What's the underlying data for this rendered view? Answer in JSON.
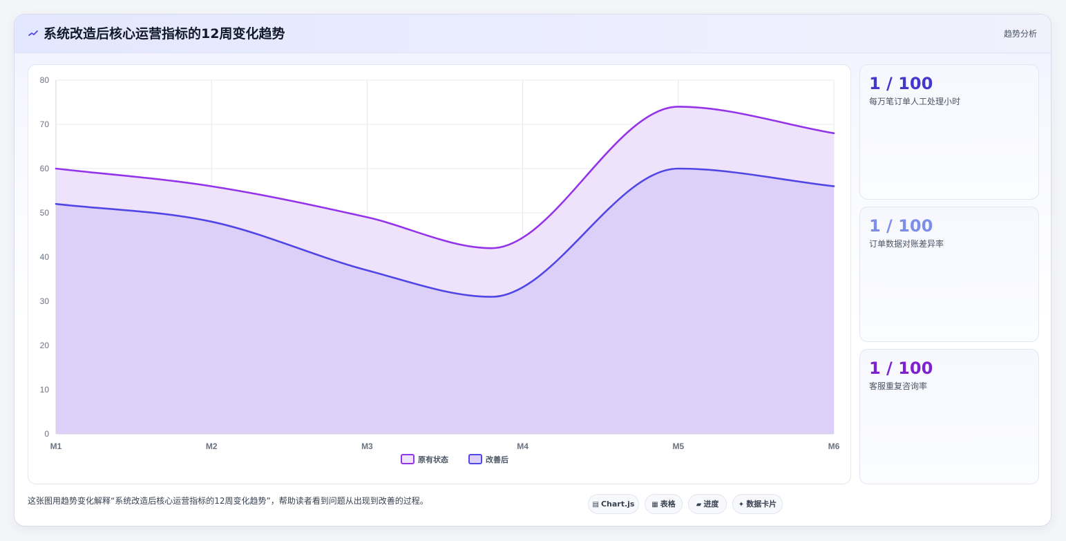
{
  "header": {
    "icon": "trend-line-icon",
    "title": "系统改造后核心运营指标的12周变化趋势",
    "tag": "趋势分析"
  },
  "stats": [
    {
      "value": "1 / 100",
      "label": "每万笔订单人工处理小时",
      "color": "#4338ca"
    },
    {
      "value": "1 / 100",
      "label": "订单数据对账差异率",
      "color": "#7c8ee8"
    },
    {
      "value": "1 / 100",
      "label": "客服重复咨询率",
      "color": "#7e22ce"
    }
  ],
  "footnote": "这张图用趋势变化解释“系统改造后核心运营指标的12周变化趋势”，帮助读者看到问题从出现到改善的过程。",
  "chips": [
    {
      "icon": "chart-icon",
      "glyph": "▤",
      "label": "Chart.js"
    },
    {
      "icon": "table-icon",
      "glyph": "▦",
      "label": "表格"
    },
    {
      "icon": "progress-icon",
      "glyph": "▰",
      "label": "进度"
    },
    {
      "icon": "sparkle-icon",
      "glyph": "✦",
      "label": "数据卡片"
    }
  ],
  "chart_data": {
    "type": "area",
    "x": [
      "M1",
      "M2",
      "M3",
      "M4",
      "M5",
      "M6"
    ],
    "x_positions": [
      0,
      1,
      2,
      2.8,
      4,
      5
    ],
    "x_tick_labels": [
      "M1",
      "M2",
      "M3",
      "M4",
      "M5",
      "M6"
    ],
    "series": [
      {
        "name": "原有状态",
        "values": [
          60,
          56,
          49,
          42,
          74,
          68
        ],
        "color": "#9333ea",
        "fill": "#efe2fb"
      },
      {
        "name": "改善后",
        "values": [
          52,
          48,
          37,
          31,
          60,
          56
        ],
        "color": "#4f46e5",
        "fill": "#dccff8"
      }
    ],
    "ylim": [
      0,
      80
    ],
    "y_ticks": [
      0,
      10,
      20,
      30,
      40,
      50,
      60,
      70,
      80
    ],
    "grid": true,
    "legend": "bottom-center",
    "title": "",
    "xlabel": "",
    "ylabel": ""
  }
}
